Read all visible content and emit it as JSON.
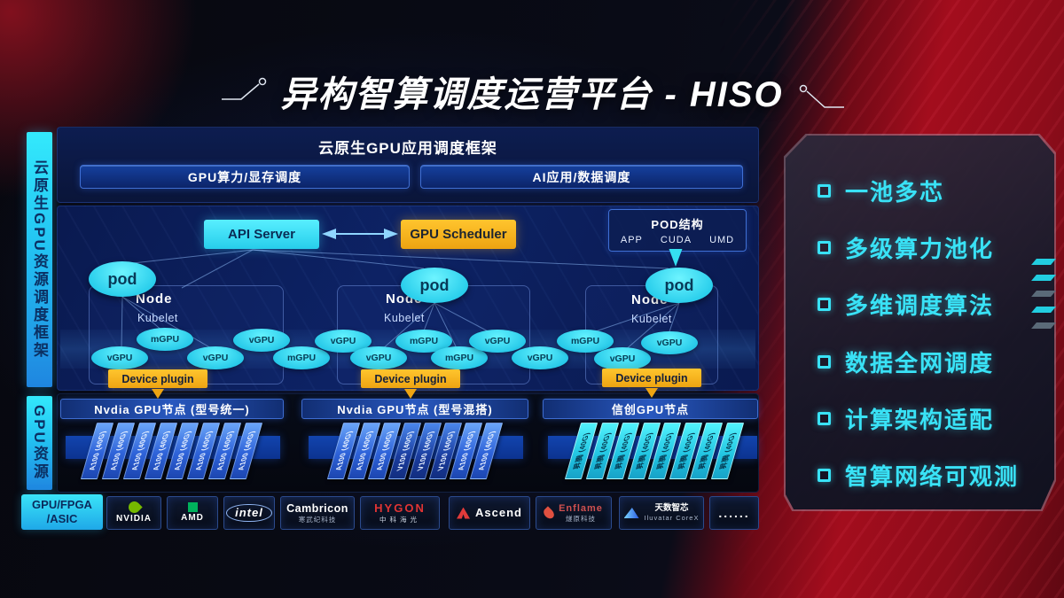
{
  "title": "异构智算调度运营平台 - HISO",
  "sidebar": {
    "framework_label": "云原生GPU资源调度框架",
    "resource_label": "GPU资源",
    "hardware_label": "GPU/FPGA\n/ASIC"
  },
  "app_framework": {
    "title": "云原生GPU应用调度框架",
    "left_bar": "GPU算力/显存调度",
    "right_bar": "AI应用/数据调度"
  },
  "scheduler": {
    "api_server": "API Server",
    "gpu_scheduler": "GPU Scheduler",
    "pod_struct": {
      "title": "POD结构",
      "items": [
        "APP",
        "CUDA",
        "UMD"
      ]
    },
    "pod_label": "pod",
    "node_label": "Node",
    "kubelet_label": "Kubelet",
    "device_plugin_label": "Device plugin",
    "gpu_units": [
      "vGPU",
      "mGPU",
      "vGPU",
      "vGPU",
      "mGPU",
      "vGPU",
      "vGPU",
      "mGPU",
      "mGPU",
      "vGPU",
      "vGPU",
      "mGPU",
      "vGPU",
      "vGPU"
    ]
  },
  "gpu_groups": [
    {
      "header": "Nvdia GPU节点 (型号统一)",
      "cards": [
        "A100 (40G)",
        "A100 (40G)",
        "A100 (40G)",
        "A100 (40G)",
        "A100 (40G)",
        "A100 (40G)",
        "A100 (40G)",
        "A100 (40G)"
      ]
    },
    {
      "header": "Nvdia GPU节点 (型号混搭)",
      "cards": [
        "A100 (40G)",
        "A100 (40G)",
        "A100 (40G)",
        "V100 (40G)",
        "V100 (40G)",
        "V100 (40G)",
        "A100 (40G)",
        "A100 (40G)"
      ]
    },
    {
      "header": "信创GPU节点",
      "cards": [
        "昇腾 (40G)",
        "昇腾 (40G)",
        "昇腾 (40G)",
        "昇腾 (40G)",
        "昇腾 (40G)",
        "昇腾 (40G)",
        "昇腾 (40G)",
        "昇腾 (40G)"
      ]
    }
  ],
  "vendors": [
    {
      "name": "NVIDIA",
      "sub": "",
      "icon": "nvidia-eye"
    },
    {
      "name": "AMD",
      "sub": "",
      "icon": "amd-square"
    },
    {
      "name": "intel",
      "sub": "",
      "icon": ""
    },
    {
      "name": "Cambricon",
      "sub": "寒武纪科技",
      "icon": ""
    },
    {
      "name": "HYGON",
      "sub": "中科海光",
      "icon": ""
    },
    {
      "name": "Ascend",
      "sub": "",
      "icon": "ascend-mark"
    },
    {
      "name": "Enflame",
      "sub": "燧原科技",
      "icon": "enflame-flame"
    },
    {
      "name": "天数智芯",
      "sub": "Iluvatar CoreX",
      "icon": "iluvatar-triangle"
    },
    {
      "name": "......",
      "sub": "",
      "icon": ""
    }
  ],
  "features": {
    "items": [
      "一池多芯",
      "多级算力池化",
      "多维调度算法",
      "数据全网调度",
      "计算架构适配",
      "智算网络可观测"
    ]
  }
}
